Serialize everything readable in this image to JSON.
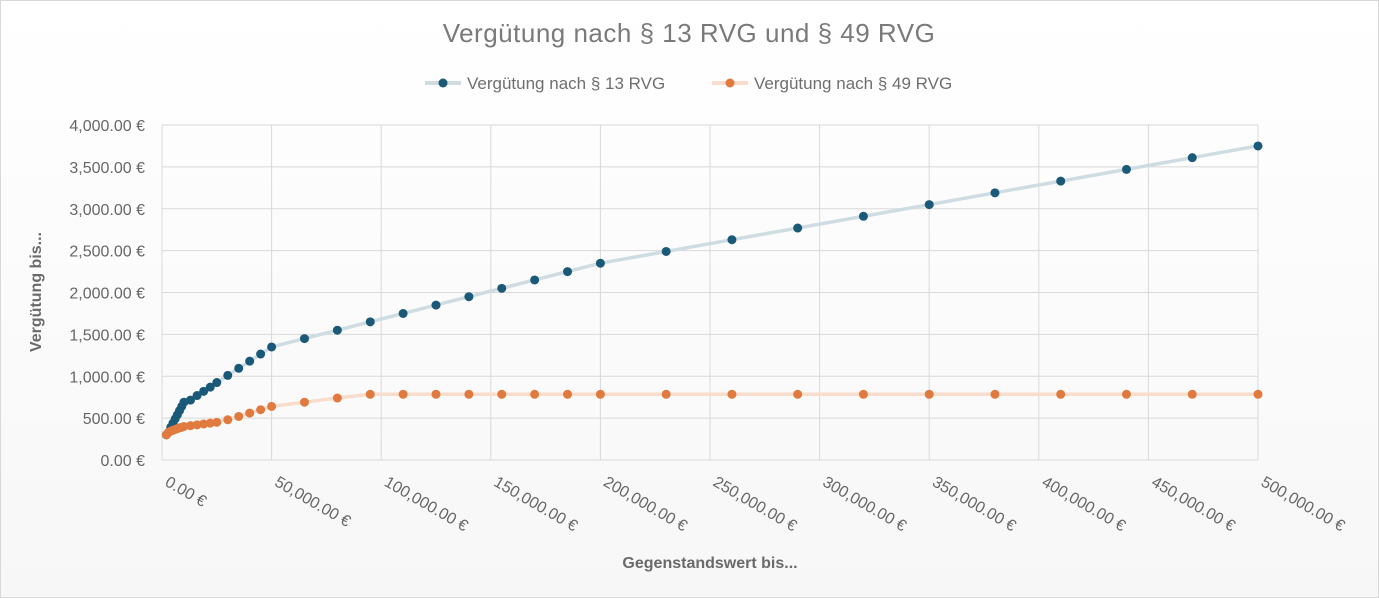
{
  "chart_data": {
    "type": "line",
    "title": "Vergütung nach § 13 RVG und § 49 RVG",
    "xlabel": "Gegenstandswert bis...",
    "ylabel": "Vergütung bis...",
    "xlim": [
      0,
      500000
    ],
    "ylim": [
      0,
      4000
    ],
    "x_ticks": [
      0,
      50000,
      100000,
      150000,
      200000,
      250000,
      300000,
      350000,
      400000,
      450000,
      500000
    ],
    "x_tick_labels": [
      "0.00 €",
      "50,000.00 €",
      "100,000.00 €",
      "150,000.00 €",
      "200,000.00 €",
      "250,000.00 €",
      "300,000.00 €",
      "350,000.00 €",
      "400,000.00 €",
      "450,000.00 €",
      "500,000.00 €"
    ],
    "y_ticks": [
      0,
      500,
      1000,
      1500,
      2000,
      2500,
      3000,
      3500,
      4000
    ],
    "y_tick_labels": [
      "0.00 €",
      "500.00 €",
      "1,000.00 €",
      "1,500.00 €",
      "2,000.00 €",
      "2,500.00 €",
      "3,000.00 €",
      "3,500.00 €",
      "4,000.00 €"
    ],
    "grid": true,
    "legend_position": "top",
    "x": [
      2000,
      3000,
      4000,
      5000,
      6000,
      7000,
      8000,
      9000,
      10000,
      13000,
      16000,
      19000,
      22000,
      25000,
      30000,
      35000,
      40000,
      45000,
      50000,
      65000,
      80000,
      95000,
      110000,
      125000,
      140000,
      155000,
      170000,
      185000,
      200000,
      230000,
      260000,
      290000,
      320000,
      350000,
      380000,
      410000,
      440000,
      470000,
      500000
    ],
    "series": [
      {
        "name": "Vergütung nach § 13 RVG",
        "color": "#1a5a78",
        "line_color": "#cfdde3",
        "values": [
          300,
          330,
          390,
          440,
          490,
          540,
          590,
          640,
          690,
          715,
          770,
          820,
          870,
          925,
          1010,
          1095,
          1180,
          1265,
          1350,
          1450,
          1550,
          1650,
          1750,
          1850,
          1950,
          2050,
          2150,
          2250,
          2350,
          2490,
          2630,
          2770,
          2910,
          3050,
          3190,
          3330,
          3470,
          3610,
          3750
        ]
      },
      {
        "name": "Vergütung nach § 49 RVG",
        "color": "#e07a3f",
        "line_color": "#f8ddcc",
        "values": [
          300,
          330,
          345,
          355,
          365,
          375,
          385,
          390,
          400,
          410,
          420,
          430,
          440,
          450,
          480,
          520,
          560,
          600,
          640,
          690,
          740,
          785,
          785,
          785,
          785,
          785,
          785,
          785,
          785,
          785,
          785,
          785,
          785,
          785,
          785,
          785,
          785,
          785,
          785
        ]
      }
    ]
  }
}
